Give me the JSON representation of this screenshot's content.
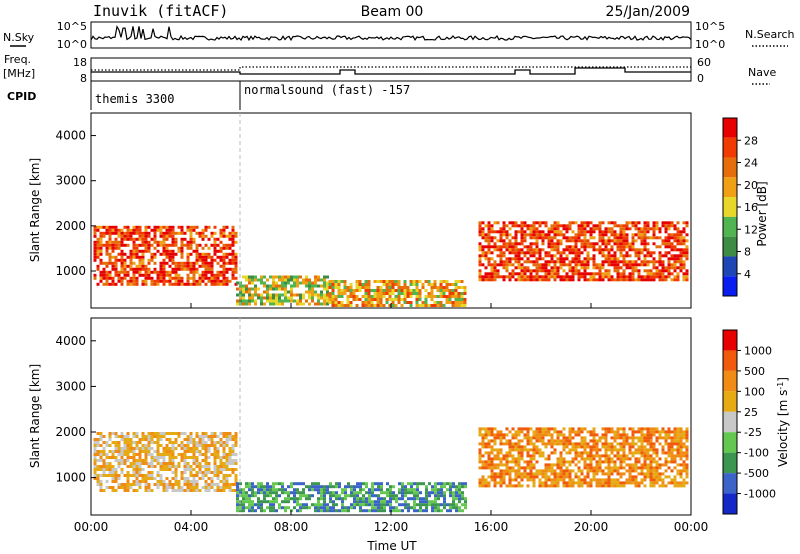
{
  "header": {
    "station": "Inuvik (fitACF)",
    "beam": "Beam 00",
    "date": "25/Jan/2009"
  },
  "time_axis": {
    "label": "Time UT",
    "ticks": [
      "00:00",
      "04:00",
      "08:00",
      "12:00",
      "16:00",
      "20:00",
      "00:00"
    ],
    "range_hours": [
      0,
      24
    ]
  },
  "nsky_panel": {
    "left_label": "N.Sky",
    "right_label": "N.Search",
    "tick_top": "10^5",
    "tick_bottom": "10^0",
    "tick_top_right": "10^5",
    "tick_bottom_right": "10^0"
  },
  "freq_panel": {
    "left_label_line1": "Freq.",
    "left_label_line2": "[MHz]",
    "left_ticks": [
      "18",
      "8"
    ],
    "right_ticks": [
      "60",
      "0"
    ],
    "right_label": "Nave"
  },
  "cpid_panel": {
    "label": "CPID",
    "programs": [
      {
        "name": "themis 3300",
        "start_h": 0.0
      },
      {
        "name": "normalsound (fast) -157",
        "start_h": 5.95
      }
    ]
  },
  "colors": {
    "scale": [
      "#0a1ef0",
      "#1e46b4",
      "#3c8c46",
      "#50b450",
      "#e6d728",
      "#f0a014",
      "#e66e0a",
      "#f03c00",
      "#e60000"
    ],
    "velocity_scale": [
      "#1428c8",
      "#3c64c8",
      "#3c9650",
      "#64c850",
      "#c8c8c8",
      "#e6aa14",
      "#f08c14",
      "#f05a0a",
      "#e60000"
    ]
  },
  "chart_data": [
    {
      "type": "heatmap",
      "name": "power",
      "ylabel": "Slant Range [km]",
      "xlabel": "",
      "ylim": [
        180,
        4500
      ],
      "yticks": [
        "1000",
        "2000",
        "3000",
        "4000"
      ],
      "colorbar_label": "Power [dB]",
      "colorbar_ticks": [
        "4",
        "8",
        "12",
        "16",
        "20",
        "24",
        "28"
      ],
      "regions": [
        {
          "t": [
            0.1,
            5.8
          ],
          "range": [
            700,
            2000
          ],
          "level": 7
        },
        {
          "t": [
            5.8,
            9.5
          ],
          "range": [
            250,
            900
          ],
          "level": 4
        },
        {
          "t": [
            9.5,
            15.0
          ],
          "range": [
            250,
            800
          ],
          "level": 5
        },
        {
          "t": [
            15.5,
            23.9
          ],
          "range": [
            800,
            2100
          ],
          "level": 7
        }
      ]
    },
    {
      "type": "heatmap",
      "name": "velocity",
      "ylabel": "Slant Range [km]",
      "xlabel": "Time UT",
      "ylim": [
        180,
        4500
      ],
      "yticks": [
        "1000",
        "2000",
        "3000",
        "4000"
      ],
      "colorbar_label": "Velocity [m s^-1]",
      "colorbar_ticks": [
        "1000",
        "500",
        "100",
        "25",
        "-25",
        "-100",
        "-500",
        "-1000"
      ],
      "regions": [
        {
          "t": [
            0.1,
            5.8
          ],
          "range": [
            700,
            2000
          ],
          "level": 5
        },
        {
          "t": [
            5.8,
            15.0
          ],
          "range": [
            250,
            900
          ],
          "level": 2
        },
        {
          "t": [
            15.5,
            23.9
          ],
          "range": [
            800,
            2100
          ],
          "level": 6
        }
      ]
    }
  ]
}
